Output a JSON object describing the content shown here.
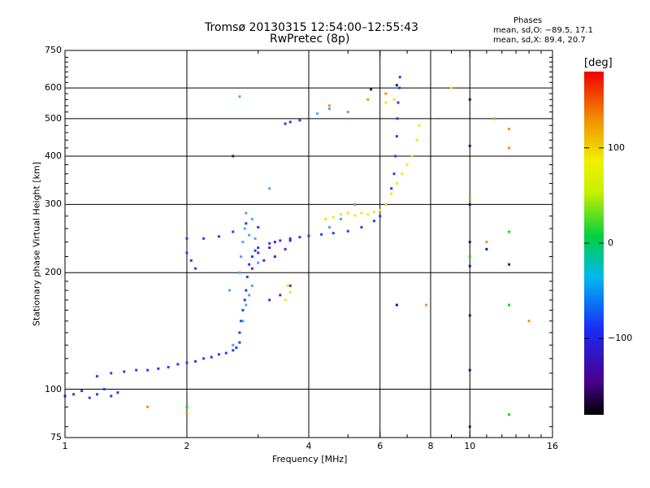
{
  "header": {
    "title_line1": "Tromsø 20130315 12:54:00–12:55:43",
    "title_line2": "RwPretec (8p)",
    "phase_label": "Phases",
    "phase_o": "mean, sd,O: −89.5, 17.1",
    "phase_x": "mean, sd,X:  89.4, 20.7"
  },
  "colorbar": {
    "label": "[deg]",
    "ticks": [
      {
        "value": 100,
        "label": "100"
      },
      {
        "value": 0,
        "label": "0"
      },
      {
        "value": -100,
        "label": "−100"
      }
    ],
    "range": [
      -180,
      180
    ]
  },
  "chart_data": {
    "type": "scatter",
    "title": "Tromsø 20130315 12:54:00–12:55:43",
    "subtitle": "RwPretec (8p)",
    "xlabel": "Frequency [MHz]",
    "ylabel": "Stationary phase Virtual Height [km]",
    "xscale": "log",
    "yscale": "log",
    "xlim": [
      1,
      16
    ],
    "ylim": [
      75,
      750
    ],
    "xticks": [
      1,
      2,
      4,
      6,
      8,
      10,
      16
    ],
    "xtick_labels": [
      "1",
      "2",
      "4",
      "6",
      "8",
      "10",
      "16"
    ],
    "yticks": [
      75,
      100,
      200,
      300,
      400,
      500,
      600,
      750
    ],
    "ytick_labels": [
      "75",
      "100",
      "200",
      "300",
      "400",
      "500",
      "600",
      "750"
    ],
    "grid": true,
    "color_encoding": "phase [deg]",
    "series": [
      {
        "color": "#2a3cf0",
        "points": [
          [
            1.0,
            96
          ],
          [
            1.05,
            97
          ],
          [
            1.1,
            99
          ],
          [
            1.15,
            95
          ],
          [
            1.2,
            97
          ],
          [
            1.25,
            100
          ],
          [
            1.3,
            96
          ],
          [
            1.35,
            98
          ],
          [
            1.2,
            108
          ],
          [
            1.3,
            110
          ],
          [
            1.4,
            111
          ],
          [
            1.5,
            112
          ],
          [
            1.6,
            112
          ],
          [
            1.7,
            113
          ],
          [
            1.8,
            114
          ],
          [
            1.9,
            116
          ],
          [
            2.0,
            117
          ],
          [
            2.1,
            118
          ],
          [
            2.2,
            120
          ],
          [
            2.3,
            121
          ],
          [
            2.4,
            123
          ],
          [
            2.5,
            124
          ],
          [
            2.6,
            126
          ],
          [
            2.65,
            128
          ],
          [
            2.7,
            132
          ],
          [
            2.7,
            140
          ],
          [
            2.72,
            150
          ],
          [
            2.75,
            160
          ],
          [
            2.78,
            170
          ],
          [
            2.8,
            180
          ],
          [
            2.82,
            195
          ],
          [
            2.85,
            210
          ],
          [
            2.9,
            220
          ],
          [
            2.95,
            228
          ],
          [
            3.0,
            232
          ],
          [
            3.2,
            238
          ],
          [
            3.4,
            242
          ],
          [
            3.6,
            245
          ],
          [
            3.8,
            247
          ],
          [
            4.0,
            249
          ],
          [
            4.3,
            251
          ],
          [
            4.6,
            253
          ],
          [
            5.0,
            256
          ],
          [
            5.4,
            262
          ],
          [
            5.8,
            272
          ],
          [
            6.0,
            280
          ],
          [
            6.2,
            300
          ],
          [
            6.4,
            330
          ],
          [
            6.5,
            360
          ],
          [
            6.55,
            400
          ],
          [
            6.6,
            450
          ],
          [
            6.62,
            500
          ],
          [
            6.65,
            550
          ],
          [
            6.7,
            600
          ],
          [
            6.72,
            640
          ],
          [
            2.0,
            225
          ],
          [
            2.05,
            215
          ],
          [
            2.1,
            205
          ],
          [
            2.0,
            245
          ],
          [
            2.2,
            245
          ],
          [
            2.4,
            248
          ],
          [
            2.6,
            255
          ],
          [
            2.8,
            268
          ],
          [
            3.0,
            262
          ],
          [
            3.5,
            485
          ],
          [
            3.6,
            490
          ],
          [
            3.8,
            495
          ]
        ]
      },
      {
        "color": "#4aa8f0",
        "points": [
          [
            2.7,
            200
          ],
          [
            2.72,
            220
          ],
          [
            2.75,
            240
          ],
          [
            2.78,
            260
          ],
          [
            2.8,
            285
          ],
          [
            2.85,
            250
          ],
          [
            2.9,
            275
          ],
          [
            2.95,
            245
          ],
          [
            2.75,
            150
          ],
          [
            2.8,
            165
          ],
          [
            2.85,
            175
          ],
          [
            2.9,
            185
          ],
          [
            3.0,
            212
          ],
          [
            2.6,
            130
          ],
          [
            2.55,
            180
          ],
          [
            4.5,
            262
          ],
          [
            4.8,
            275
          ],
          [
            5.2,
            300
          ],
          [
            5.0,
            520
          ],
          [
            4.5,
            530
          ],
          [
            4.2,
            515
          ],
          [
            3.2,
            330
          ],
          [
            2.7,
            570
          ]
        ]
      },
      {
        "color": "#6a18c8",
        "points": [
          [
            3.0,
            225
          ],
          [
            3.2,
            232
          ],
          [
            3.5,
            230
          ],
          [
            3.3,
            240
          ],
          [
            3.6,
            242
          ],
          [
            3.2,
            170
          ],
          [
            3.4,
            175
          ],
          [
            3.6,
            185
          ],
          [
            3.1,
            215
          ],
          [
            2.9,
            205
          ],
          [
            3.3,
            220
          ]
        ]
      },
      {
        "color": "#f0e810",
        "points": [
          [
            4.4,
            275
          ],
          [
            4.6,
            278
          ],
          [
            4.8,
            283
          ],
          [
            5.0,
            285
          ],
          [
            5.2,
            281
          ],
          [
            5.4,
            285
          ],
          [
            5.6,
            283
          ],
          [
            5.8,
            287
          ],
          [
            6.0,
            290
          ],
          [
            6.2,
            300
          ],
          [
            6.4,
            320
          ],
          [
            6.6,
            340
          ],
          [
            6.8,
            360
          ],
          [
            7.0,
            380
          ],
          [
            7.2,
            400
          ],
          [
            7.4,
            440
          ],
          [
            7.5,
            480
          ],
          [
            3.5,
            170
          ],
          [
            3.6,
            178
          ],
          [
            3.55,
            185
          ],
          [
            6.2,
            550
          ],
          [
            6.5,
            560
          ],
          [
            9.0,
            600
          ]
        ]
      },
      {
        "color": "#f09018",
        "points": [
          [
            1.6,
            90
          ],
          [
            2.0,
            87
          ],
          [
            4.5,
            540
          ],
          [
            5.6,
            560
          ],
          [
            6.2,
            580
          ],
          [
            10.0,
            310
          ],
          [
            11.5,
            500
          ],
          [
            12.5,
            470
          ],
          [
            12.5,
            420
          ],
          [
            14.0,
            150
          ],
          [
            7.8,
            165
          ],
          [
            11.0,
            240
          ]
        ]
      },
      {
        "color": "#20d020",
        "points": [
          [
            2.0,
            90
          ],
          [
            12.5,
            255
          ],
          [
            12.5,
            165
          ],
          [
            12.5,
            86
          ],
          [
            10.0,
            220
          ]
        ]
      },
      {
        "color": "#1a1a8a",
        "points": [
          [
            10.0,
            560
          ],
          [
            10.0,
            425
          ],
          [
            10.0,
            300
          ],
          [
            10.0,
            240
          ],
          [
            10.0,
            208
          ],
          [
            10.0,
            155
          ],
          [
            10.0,
            112
          ],
          [
            10.0,
            80
          ],
          [
            6.6,
            165
          ],
          [
            11.0,
            230
          ],
          [
            12.5,
            210
          ],
          [
            2.6,
            400
          ],
          [
            5.7,
            595
          ],
          [
            6.6,
            610
          ]
        ]
      }
    ]
  }
}
